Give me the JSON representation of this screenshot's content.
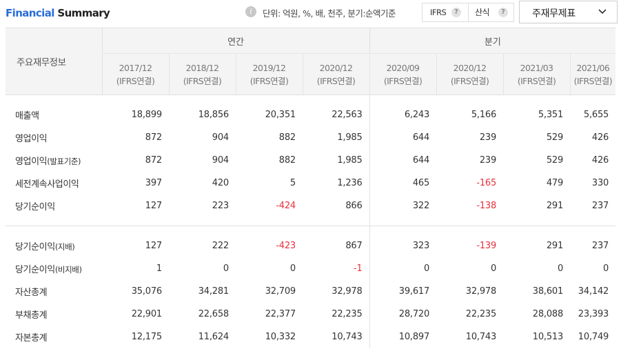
{
  "header": {
    "title_part1": "Financial",
    "title_part2": "Summary",
    "info_icon": "info-icon",
    "unit_text": "단위: 억원, %, 배, 천주, 분기:순액기준",
    "ifrs_label": "IFRS",
    "sansik_label": "산식",
    "help_symbol": "?",
    "select_value": "주재무제표",
    "select_icon": "chevron-down-icon"
  },
  "table": {
    "row_header": "주요재무정보",
    "group_annual": "연간",
    "group_quarter": "분기",
    "columns": [
      {
        "period": "2017/12",
        "basis": "(IFRS연결)"
      },
      {
        "period": "2018/12",
        "basis": "(IFRS연결)"
      },
      {
        "period": "2019/12",
        "basis": "(IFRS연결)"
      },
      {
        "period": "2020/12",
        "basis": "(IFRS연결)"
      },
      {
        "period": "2020/09",
        "basis": "(IFRS연결)"
      },
      {
        "period": "2020/12",
        "basis": "(IFRS연결)"
      },
      {
        "period": "2021/03",
        "basis": "(IFRS연결)"
      },
      {
        "period": "2021/06",
        "basis": "(IFRS연결)"
      }
    ],
    "rows": [
      {
        "label": "매출액",
        "sub": "",
        "values": [
          "18,899",
          "18,856",
          "20,351",
          "22,563",
          "6,243",
          "5,166",
          "5,351",
          "5,655"
        ]
      },
      {
        "label": "영업이익",
        "sub": "",
        "values": [
          "872",
          "904",
          "882",
          "1,985",
          "644",
          "239",
          "529",
          "426"
        ]
      },
      {
        "label": "영업이익",
        "sub": "(발표기준)",
        "values": [
          "872",
          "904",
          "882",
          "1,985",
          "644",
          "239",
          "529",
          "426"
        ]
      },
      {
        "label": "세전계속사업이익",
        "sub": "",
        "values": [
          "397",
          "420",
          "5",
          "1,236",
          "465",
          "-165",
          "479",
          "330"
        ]
      },
      {
        "label": "당기순이익",
        "sub": "",
        "values": [
          "127",
          "223",
          "-424",
          "866",
          "322",
          "-138",
          "291",
          "237"
        ]
      },
      {
        "label": "당기순이익",
        "sub": "(지배)",
        "values": [
          "127",
          "222",
          "-423",
          "867",
          "323",
          "-139",
          "291",
          "237"
        ]
      },
      {
        "label": "당기순이익",
        "sub": "(비지배)",
        "values": [
          "1",
          "0",
          "0",
          "-1",
          "0",
          "0",
          "0",
          "0"
        ]
      },
      {
        "label": "자산총계",
        "sub": "",
        "values": [
          "35,076",
          "34,281",
          "32,709",
          "32,978",
          "39,617",
          "32,978",
          "38,601",
          "34,142"
        ]
      },
      {
        "label": "부채총계",
        "sub": "",
        "values": [
          "22,901",
          "22,658",
          "22,377",
          "22,235",
          "28,720",
          "22,235",
          "28,088",
          "23,393"
        ]
      },
      {
        "label": "자본총계",
        "sub": "",
        "values": [
          "12,175",
          "11,624",
          "10,332",
          "10,743",
          "10,897",
          "10,743",
          "10,513",
          "10,749"
        ]
      }
    ],
    "negative_color": "#e8303d",
    "title_accent_color": "#2a6dd9"
  }
}
